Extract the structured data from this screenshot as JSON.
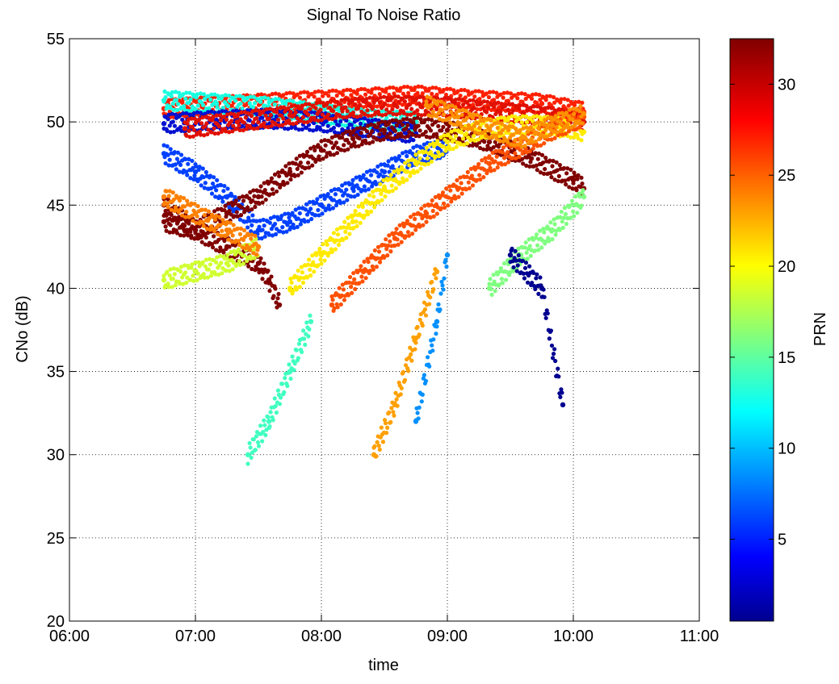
{
  "chart_data": {
    "type": "scatter",
    "title": "Signal To Noise Ratio",
    "xlabel": "time",
    "ylabel": "CNo (dB)",
    "xlim": [
      "06:00",
      "11:00"
    ],
    "ylim": [
      20,
      55
    ],
    "x_ticks": [
      "06:00",
      "07:00",
      "08:00",
      "09:00",
      "10:00",
      "11:00"
    ],
    "y_ticks": [
      20,
      25,
      30,
      35,
      40,
      45,
      50,
      55
    ],
    "grid": true,
    "colorbar": {
      "label": "PRN",
      "range": [
        0.5,
        32.5
      ],
      "ticks": [
        5,
        10,
        15,
        20,
        25,
        30
      ],
      "colormap": "jet"
    },
    "series": [
      {
        "prn": 31,
        "color": "#ff2000",
        "x": [
          "06:45",
          "07:15",
          "07:45",
          "08:15",
          "08:45",
          "09:15",
          "09:45",
          "10:05"
        ],
        "y": [
          50.8,
          51.0,
          51.2,
          51.4,
          51.6,
          51.3,
          51.1,
          50.6
        ]
      },
      {
        "prn": 12,
        "color": "#18ffe0",
        "x": [
          "06:45",
          "07:10",
          "07:35",
          "08:00",
          "08:20",
          "08:45"
        ],
        "y": [
          51.3,
          51.1,
          50.9,
          50.5,
          50.2,
          50.0
        ]
      },
      {
        "prn": 2,
        "color": "#0010d0",
        "x": [
          "06:45",
          "07:10",
          "07:35",
          "08:00",
          "08:25",
          "08:45"
        ],
        "y": [
          49.9,
          50.1,
          50.2,
          50.0,
          49.6,
          49.3
        ]
      },
      {
        "prn": 29,
        "color": "#e01000",
        "x": [
          "06:55",
          "07:20",
          "07:45",
          "08:10",
          "08:35",
          "09:00",
          "09:25",
          "09:50",
          "10:05"
        ],
        "y": [
          49.6,
          50.0,
          50.4,
          50.8,
          51.0,
          50.9,
          50.6,
          50.3,
          50.0
        ]
      },
      {
        "prn": 4,
        "color": "#0040ff",
        "x": [
          "06:45",
          "07:00",
          "07:15",
          "07:30",
          "07:45",
          "08:00",
          "08:15",
          "08:30",
          "08:45",
          "09:00"
        ],
        "y": [
          48.1,
          47.0,
          45.5,
          43.5,
          44.0,
          45.0,
          46.0,
          47.0,
          48.0,
          48.5
        ]
      },
      {
        "prn": 32,
        "color": "#800000",
        "x": [
          "06:45",
          "07:00",
          "07:15",
          "07:30",
          "07:45",
          "08:00",
          "08:15",
          "08:30",
          "08:45",
          "09:00",
          "09:20",
          "09:40",
          "10:00",
          "10:05"
        ],
        "y": [
          44.0,
          43.5,
          44.5,
          45.5,
          47.0,
          48.3,
          49.0,
          49.5,
          49.7,
          49.5,
          48.8,
          47.8,
          46.5,
          46.0
        ]
      },
      {
        "prn": 32,
        "color": "#800000",
        "x": [
          "06:45",
          "07:00",
          "07:15",
          "07:30",
          "07:35",
          "07:40"
        ],
        "y": [
          45.0,
          43.5,
          42.5,
          41.5,
          40.5,
          39.0
        ]
      },
      {
        "prn": 20,
        "color": "#ffea00",
        "x": [
          "07:45",
          "08:00",
          "08:15",
          "08:30",
          "08:45",
          "09:00",
          "09:15",
          "09:30",
          "09:45",
          "10:00",
          "10:05"
        ],
        "y": [
          40.0,
          42.0,
          44.0,
          46.0,
          47.5,
          48.8,
          49.5,
          49.8,
          49.8,
          49.6,
          49.4
        ]
      },
      {
        "prn": 27,
        "color": "#ff5000",
        "x": [
          "08:05",
          "08:20",
          "08:35",
          "08:50",
          "09:05",
          "09:20",
          "09:35",
          "09:50",
          "10:05"
        ],
        "y": [
          39.0,
          41.0,
          43.0,
          44.5,
          46.0,
          47.5,
          48.5,
          49.5,
          50.3
        ]
      },
      {
        "prn": 24,
        "color": "#ff9000",
        "x": [
          "08:50",
          "09:05",
          "09:20",
          "09:35",
          "09:50",
          "10:05"
        ],
        "y": [
          51.0,
          50.3,
          49.6,
          49.0,
          49.8,
          50.5
        ]
      },
      {
        "prn": 16,
        "color": "#80ff80",
        "x": [
          "09:20",
          "09:35",
          "09:50",
          "10:05"
        ],
        "y": [
          40.0,
          42.0,
          43.5,
          45.5
        ]
      },
      {
        "prn": 19,
        "color": "#d0ff30",
        "x": [
          "06:45",
          "07:00",
          "07:15",
          "07:30"
        ],
        "y": [
          40.5,
          41.0,
          41.5,
          42.5
        ]
      },
      {
        "prn": 25,
        "color": "#ff8000",
        "x": [
          "06:45",
          "07:00",
          "07:15",
          "07:30"
        ],
        "y": [
          45.5,
          44.5,
          43.5,
          42.5
        ]
      },
      {
        "prn": 23,
        "color": "#ffa000",
        "x": [
          "08:25",
          "08:35",
          "08:45",
          "08:55"
        ],
        "y": [
          30.0,
          33.0,
          37.0,
          41.0
        ]
      },
      {
        "prn": 13,
        "color": "#40ffc0",
        "x": [
          "07:25",
          "07:35",
          "07:45",
          "07:55"
        ],
        "y": [
          30.0,
          32.0,
          35.0,
          38.0
        ]
      },
      {
        "prn": 9,
        "color": "#0090ff",
        "x": [
          "08:45",
          "08:55",
          "09:00"
        ],
        "y": [
          32.0,
          38.0,
          42.0
        ]
      },
      {
        "prn": 1,
        "color": "#000090",
        "x": [
          "09:30",
          "09:45",
          "09:55"
        ],
        "y": [
          42.0,
          40.0,
          33.0
        ]
      }
    ]
  }
}
